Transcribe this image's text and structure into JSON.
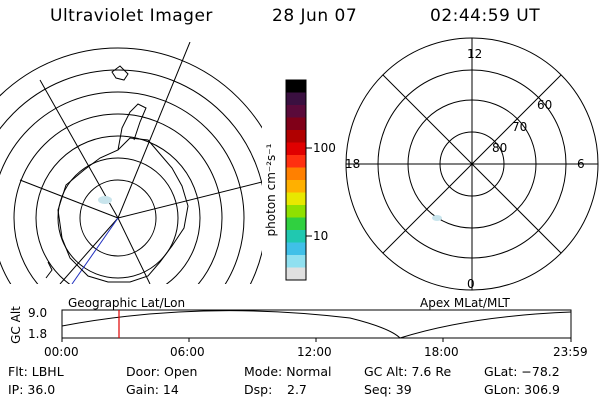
{
  "header": {
    "instrument": "Ultraviolet Imager",
    "date": "28 Jun 07",
    "time": "02:44:59 UT"
  },
  "colorbar": {
    "unit_label": "photon cm⁻²s⁻¹",
    "ticks": [
      "100",
      "10"
    ],
    "colors": [
      "#000000",
      "#3a1040",
      "#5a0a3a",
      "#800018",
      "#b00000",
      "#e00000",
      "#ff3010",
      "#ff8000",
      "#ffb000",
      "#e8e800",
      "#90e000",
      "#30d040",
      "#20c8b0",
      "#40c0e8",
      "#90e0f0",
      "#e0e0e0"
    ]
  },
  "geo_panel": {
    "label": "Geographic Lat/Lon"
  },
  "apex_panel": {
    "label": "Apex MLat/MLT",
    "mlt_labels": {
      "top": "12",
      "left": "18",
      "right": "6",
      "bottom": "0"
    },
    "mlat_labels": [
      "60",
      "70",
      "80"
    ]
  },
  "altitude_plot": {
    "ylabel": "GC Alt",
    "ymax_label": "9.0",
    "ymin_label": "1.8",
    "time_ticks": [
      "00:00",
      "06:00",
      "12:00",
      "18:00",
      "23:59"
    ]
  },
  "info": {
    "filter": "Flt: LBHL",
    "ip": "IP: 36.0",
    "door": "Door: Open",
    "gain": "Gain: 14",
    "mode": "Mode: Normal",
    "dsp_label": "Dsp:",
    "dsp_value": "2.7",
    "gc_alt": "GC Alt: 7.6 Re",
    "seq": "Seq: 39",
    "glat": "GLat: −78.2",
    "glon": "GLon: 306.9"
  }
}
